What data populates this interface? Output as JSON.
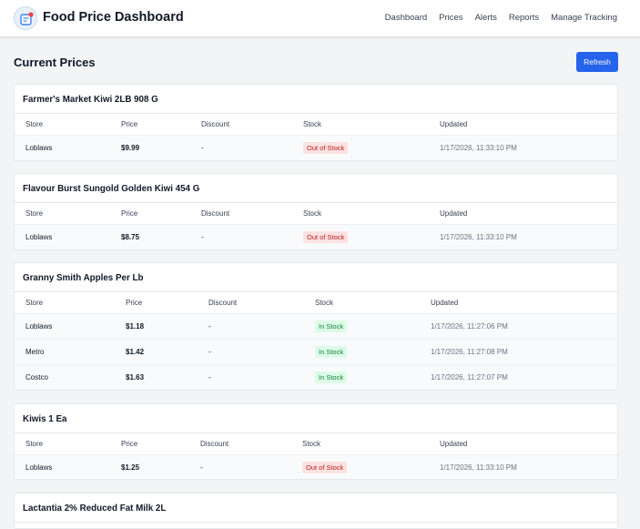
{
  "header": {
    "brand": "Food Price Dashboard",
    "nav": [
      "Dashboard",
      "Prices",
      "Alerts",
      "Reports",
      "Manage Tracking"
    ]
  },
  "main": {
    "title": "Current Prices",
    "refresh_label": "Refresh",
    "columns": [
      "Store",
      "Price",
      "Discount",
      "Stock",
      "Updated"
    ]
  },
  "products": [
    {
      "name": "Farmer's Market Kiwi 2LB 908 G",
      "rows": [
        {
          "store": "Loblaws",
          "price": "$9.99",
          "discount": "-",
          "stock": "Out of Stock",
          "updated": "1/17/2026, 11:33:10 PM"
        }
      ]
    },
    {
      "name": "Flavour Burst Sungold Golden Kiwi 454 G",
      "rows": [
        {
          "store": "Loblaws",
          "price": "$8.75",
          "discount": "-",
          "stock": "Out of Stock",
          "updated": "1/17/2026, 11:33:10 PM"
        }
      ]
    },
    {
      "name": "Granny Smith Apples Per Lb",
      "rows": [
        {
          "store": "Loblaws",
          "price": "$1.18",
          "discount": "-",
          "stock": "In Stock",
          "updated": "1/17/2026, 11:27:06 PM"
        },
        {
          "store": "Metro",
          "price": "$1.42",
          "discount": "-",
          "stock": "In Stock",
          "updated": "1/17/2026, 11:27:08 PM"
        },
        {
          "store": "Costco",
          "price": "$1.63",
          "discount": "-",
          "stock": "In Stock",
          "updated": "1/17/2026, 11:27:07 PM"
        }
      ]
    },
    {
      "name": "Kiwis 1 Ea",
      "rows": [
        {
          "store": "Loblaws",
          "price": "$1.25",
          "discount": "-",
          "stock": "Out of Stock",
          "updated": "1/17/2026, 11:33:10 PM"
        }
      ]
    },
    {
      "name": "Lactantia 2% Reduced Fat Milk 2L",
      "rows": []
    }
  ],
  "colors": {
    "accent": "#2563eb",
    "out_of_stock_bg": "#fde2e2",
    "out_of_stock_text": "#b91c1c",
    "in_stock_bg": "#dcfce7",
    "in_stock_text": "#15803d"
  },
  "icons": {
    "logo": "price-tag-logo-icon"
  }
}
